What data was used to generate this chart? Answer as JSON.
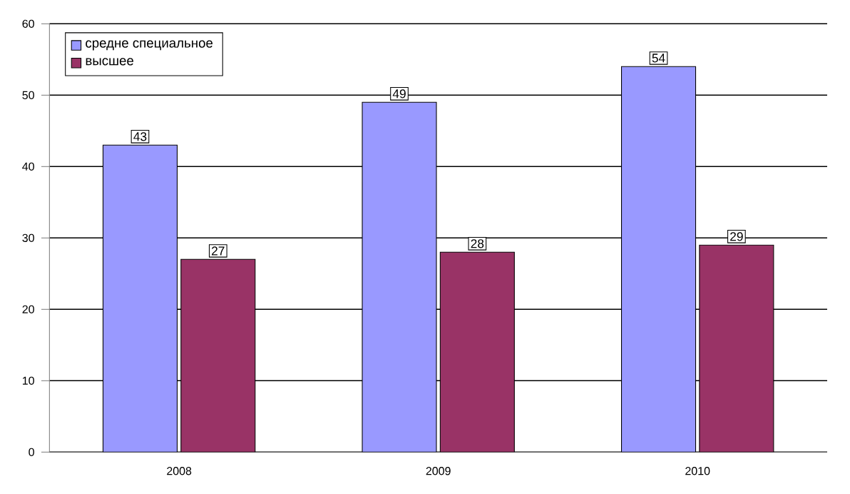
{
  "chart_data": {
    "type": "bar",
    "categories": [
      "2008",
      "2009",
      "2010"
    ],
    "series": [
      {
        "name": "средне специальное",
        "color": "#9999ff",
        "values": [
          43,
          49,
          54
        ]
      },
      {
        "name": "высшее",
        "color": "#993366",
        "values": [
          27,
          28,
          29
        ]
      }
    ],
    "ylim": [
      0,
      60
    ],
    "yticks": [
      0,
      10,
      20,
      30,
      40,
      50,
      60
    ],
    "grid": "y",
    "legend": "top left",
    "data_labels": true
  }
}
